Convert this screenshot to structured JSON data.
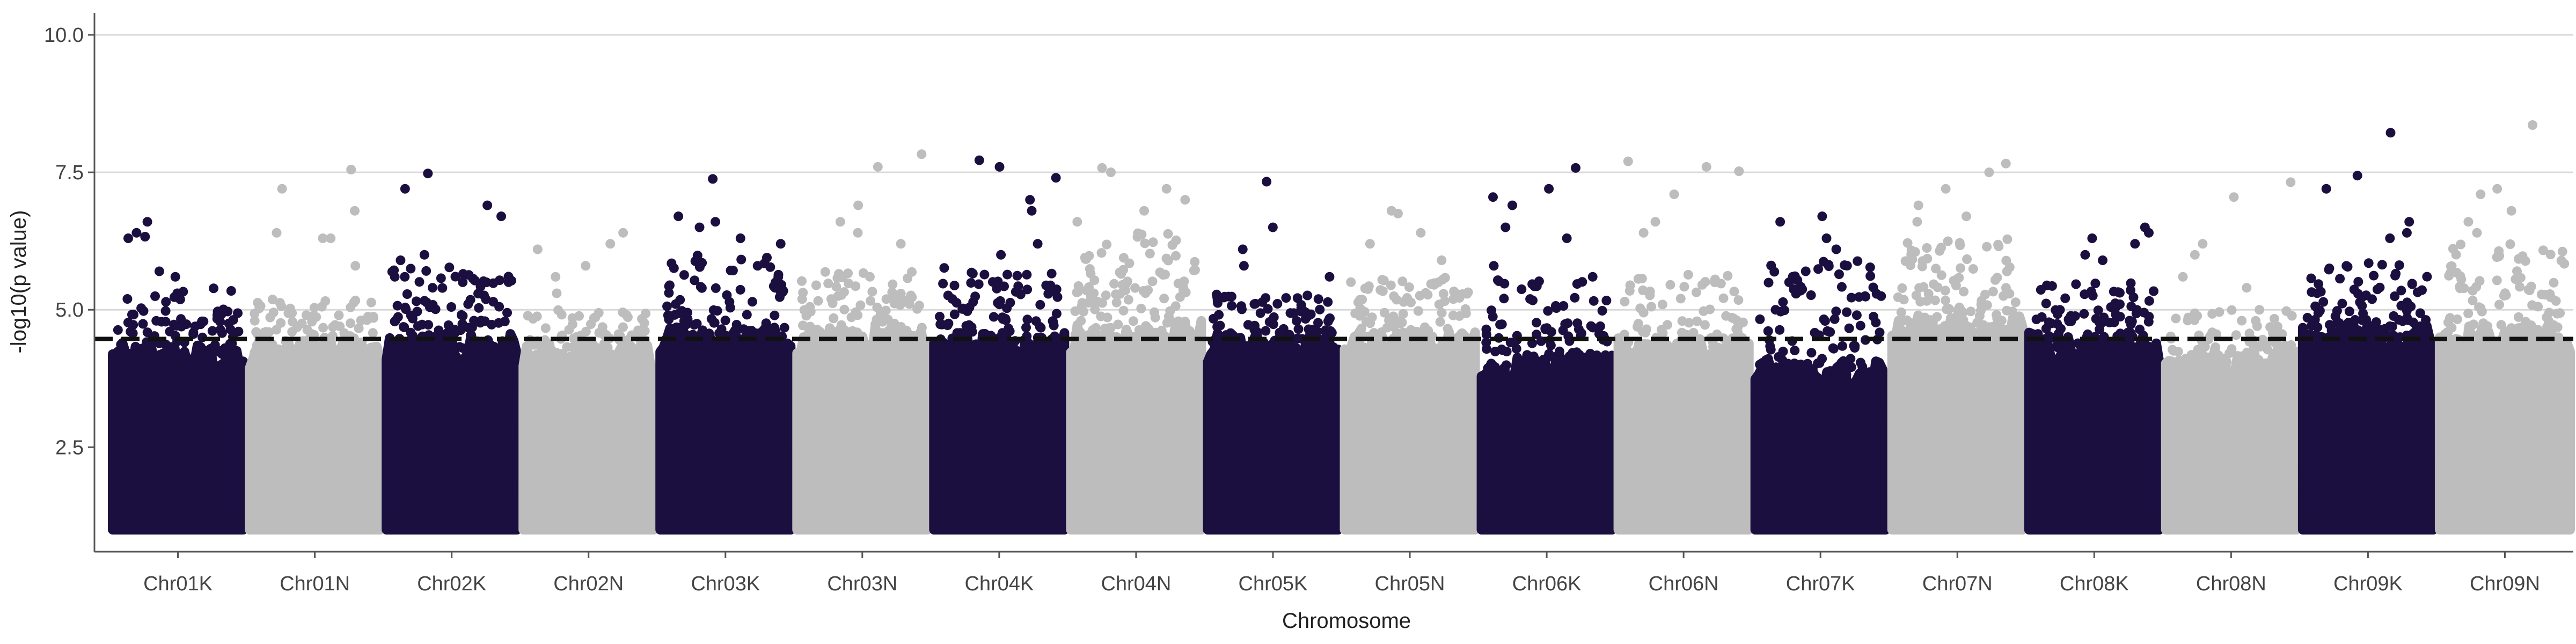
{
  "chart_data": {
    "type": "scatter",
    "title": "",
    "xlabel": "Chromosome",
    "ylabel": "-log10(p value)",
    "ylim": [
      0.6,
      10.4
    ],
    "y_ticks": [
      2.5,
      5.0,
      7.5,
      10.0
    ],
    "y_tick_labels": [
      "2.5",
      "5.0",
      "7.5",
      "10.0"
    ],
    "grid": "horizontal major lines only",
    "legend": "none",
    "threshold": 4.47,
    "colors": {
      "dark": "#1b0f40",
      "light": "#bdbdbd",
      "threshold_line": "#111111",
      "grid": "#d9d9d9",
      "axis": "#555555"
    },
    "categories": [
      "Chr01K",
      "Chr01N",
      "Chr02K",
      "Chr02N",
      "Chr03K",
      "Chr03N",
      "Chr04K",
      "Chr04N",
      "Chr05K",
      "Chr05N",
      "Chr06K",
      "Chr06N",
      "Chr07K",
      "Chr07N",
      "Chr08K",
      "Chr08N",
      "Chr09K",
      "Chr09N"
    ],
    "series": [
      {
        "chrom": "Chr01K",
        "color_group": "dark",
        "base_top": 4.1,
        "dense_max": 5.4,
        "top_points": [
          6.33,
          6.4,
          6.3,
          6.6,
          5.7,
          5.6,
          5.3
        ]
      },
      {
        "chrom": "Chr01N",
        "color_group": "light",
        "base_top": 4.2,
        "dense_max": 5.2,
        "top_points": [
          7.2,
          6.4,
          6.3,
          7.55,
          6.8,
          6.3,
          5.8
        ]
      },
      {
        "chrom": "Chr02K",
        "color_group": "dark",
        "base_top": 4.3,
        "dense_max": 5.8,
        "top_points": [
          7.48,
          7.2,
          6.9,
          6.7,
          6.0,
          5.9,
          5.6
        ]
      },
      {
        "chrom": "Chr02N",
        "color_group": "light",
        "base_top": 4.1,
        "dense_max": 5.0,
        "top_points": [
          6.4,
          6.2,
          6.1,
          5.8,
          5.6,
          5.3
        ]
      },
      {
        "chrom": "Chr03K",
        "color_group": "dark",
        "base_top": 4.4,
        "dense_max": 6.0,
        "top_points": [
          7.38,
          6.7,
          6.6,
          6.5,
          6.3,
          6.2
        ]
      },
      {
        "chrom": "Chr03N",
        "color_group": "light",
        "base_top": 4.4,
        "dense_max": 5.7,
        "top_points": [
          7.83,
          7.6,
          6.9,
          6.6,
          6.4,
          6.2
        ]
      },
      {
        "chrom": "Chr04K",
        "color_group": "dark",
        "base_top": 4.3,
        "dense_max": 5.8,
        "top_points": [
          7.72,
          7.6,
          7.4,
          7.0,
          6.8,
          6.2,
          6.0
        ]
      },
      {
        "chrom": "Chr04N",
        "color_group": "light",
        "base_top": 4.5,
        "dense_max": 6.4,
        "top_points": [
          7.58,
          7.5,
          7.2,
          7.0,
          6.8,
          6.6
        ]
      },
      {
        "chrom": "Chr05K",
        "color_group": "dark",
        "base_top": 4.3,
        "dense_max": 5.3,
        "top_points": [
          7.33,
          6.5,
          6.1,
          5.8,
          5.6
        ]
      },
      {
        "chrom": "Chr05N",
        "color_group": "light",
        "base_top": 4.3,
        "dense_max": 5.6,
        "top_points": [
          6.8,
          6.75,
          6.4,
          6.2,
          5.9
        ]
      },
      {
        "chrom": "Chr06K",
        "color_group": "dark",
        "base_top": 3.9,
        "dense_max": 5.6,
        "top_points": [
          7.58,
          7.2,
          7.05,
          6.9,
          6.5,
          6.3,
          5.8
        ]
      },
      {
        "chrom": "Chr06N",
        "color_group": "light",
        "base_top": 4.2,
        "dense_max": 5.7,
        "top_points": [
          7.7,
          7.6,
          7.52,
          7.1,
          6.6,
          6.4
        ]
      },
      {
        "chrom": "Chr07K",
        "color_group": "dark",
        "base_top": 3.8,
        "dense_max": 5.9,
        "top_points": [
          6.7,
          6.6,
          6.3,
          6.1,
          5.7
        ]
      },
      {
        "chrom": "Chr07N",
        "color_group": "light",
        "base_top": 4.6,
        "dense_max": 6.3,
        "top_points": [
          7.66,
          7.5,
          7.2,
          6.9,
          6.7,
          6.6
        ]
      },
      {
        "chrom": "Chr08K",
        "color_group": "dark",
        "base_top": 4.3,
        "dense_max": 5.5,
        "top_points": [
          6.5,
          6.4,
          6.3,
          6.2,
          6.0,
          5.9
        ]
      },
      {
        "chrom": "Chr08N",
        "color_group": "light",
        "base_top": 4.0,
        "dense_max": 5.0,
        "top_points": [
          7.32,
          7.05,
          6.2,
          6.0,
          5.6,
          5.4
        ]
      },
      {
        "chrom": "Chr09K",
        "color_group": "dark",
        "base_top": 4.5,
        "dense_max": 5.9,
        "top_points": [
          8.22,
          7.44,
          7.2,
          6.6,
          6.4,
          6.3
        ]
      },
      {
        "chrom": "Chr09N",
        "color_group": "light",
        "base_top": 4.4,
        "dense_max": 6.2,
        "top_points": [
          8.36,
          7.2,
          7.1,
          6.8,
          6.6,
          6.4
        ]
      }
    ]
  }
}
